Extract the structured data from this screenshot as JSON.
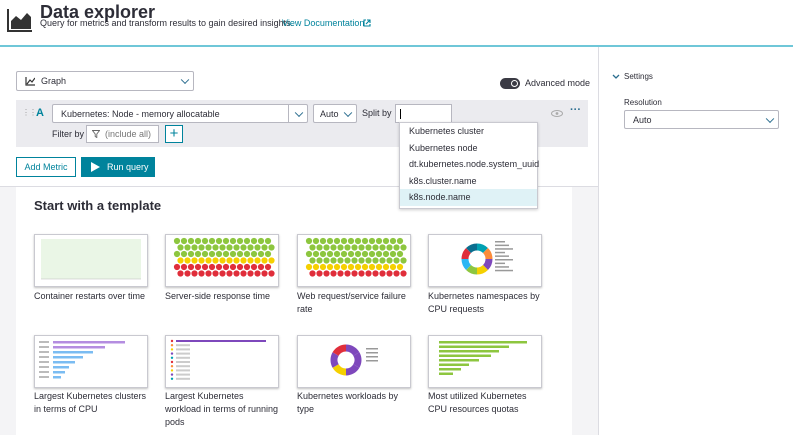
{
  "header": {
    "title": "Data explorer",
    "subtitle": "Query for metrics and transform results to gain desired insights.",
    "link": "View Documentation"
  },
  "toolbar": {
    "visualization": "Graph",
    "advanced_mode": "Advanced mode"
  },
  "query": {
    "letter": "A",
    "metric": "Kubernetes: Node - memory allocatable",
    "aggregation": "Auto",
    "split_by_label": "Split by",
    "filter_by_label": "Filter by",
    "filter_placeholder": "(include all)"
  },
  "split_options": [
    "Kubernetes cluster",
    "Kubernetes node",
    "dt.kubernetes.node.system_uuid",
    "k8s.cluster.name",
    "k8s.node.name"
  ],
  "actions": {
    "add_metric": "Add Metric",
    "run_query": "Run query"
  },
  "templates": {
    "title": "Start with a template",
    "items": [
      "Container restarts over time",
      "Server-side response time",
      "Web request/service failure rate",
      "Kubernetes namespaces by CPU requests",
      "Largest Kubernetes clusters in terms of CPU",
      "Largest Kubernetes workload in terms of running pods",
      "Kubernetes workloads by type",
      "Most utilized Kubernetes CPU resources quotas"
    ]
  },
  "settings": {
    "title": "Settings",
    "resolution_label": "Resolution",
    "resolution": "Auto"
  }
}
